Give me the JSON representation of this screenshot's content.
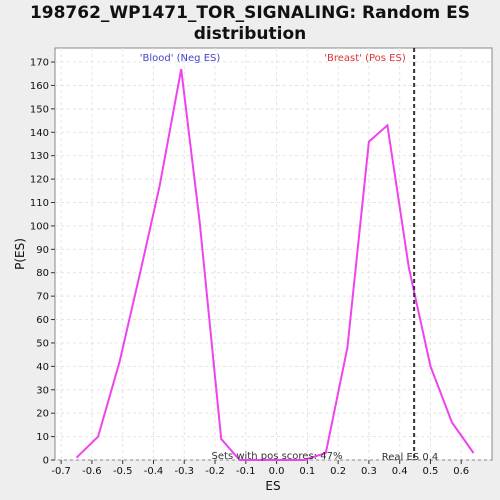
{
  "chart_data": {
    "type": "line",
    "title_line1": "198762_WP1471_TOR_SIGNALING: Random ES",
    "title_line2": "distribution",
    "xlabel": "ES",
    "ylabel": "P(ES)",
    "xlim": [
      -0.72,
      0.7
    ],
    "ylim": [
      0,
      176
    ],
    "xticks": [
      -0.7,
      -0.6,
      -0.5,
      -0.4,
      -0.3,
      -0.2,
      -0.1,
      0.0,
      0.1,
      0.2,
      0.3,
      0.4,
      0.5,
      0.6
    ],
    "xtick_labels": [
      "-0.7",
      "-0.6",
      "-0.5",
      "-0.4",
      "-0.3",
      "-0.2",
      "-0.1",
      "0.0",
      "0.1",
      "0.2",
      "0.3",
      "0.4",
      "0.5",
      "0.6"
    ],
    "yticks": [
      0,
      10,
      20,
      30,
      40,
      50,
      60,
      70,
      80,
      90,
      100,
      110,
      120,
      130,
      140,
      150,
      160,
      170
    ],
    "grid": true,
    "line_color": "#ee44ee",
    "series": [
      {
        "x": [
          -0.65,
          -0.58,
          -0.51,
          -0.44,
          -0.38,
          -0.31,
          -0.25,
          -0.18,
          -0.12,
          -0.05,
          0.02,
          0.09,
          0.16,
          0.23,
          0.3,
          0.36,
          0.43,
          0.5,
          0.57,
          0.64
        ],
        "y": [
          1,
          10,
          42,
          82,
          117,
          167,
          102,
          9,
          0,
          0,
          0,
          0,
          3,
          48,
          136,
          143,
          82,
          40,
          16,
          3
        ]
      }
    ],
    "real_es": 0.447,
    "annotations": {
      "neg_label": "'Blood' (Neg ES)",
      "pos_label": "'Breast' (Pos ES)",
      "pos_scores": "Sets with pos scores: 47%",
      "real_es_label": "Real ES 0.4"
    },
    "colors": {
      "neg": "#4444cc",
      "pos": "#dd3333",
      "real_es_line": "#333333"
    }
  }
}
